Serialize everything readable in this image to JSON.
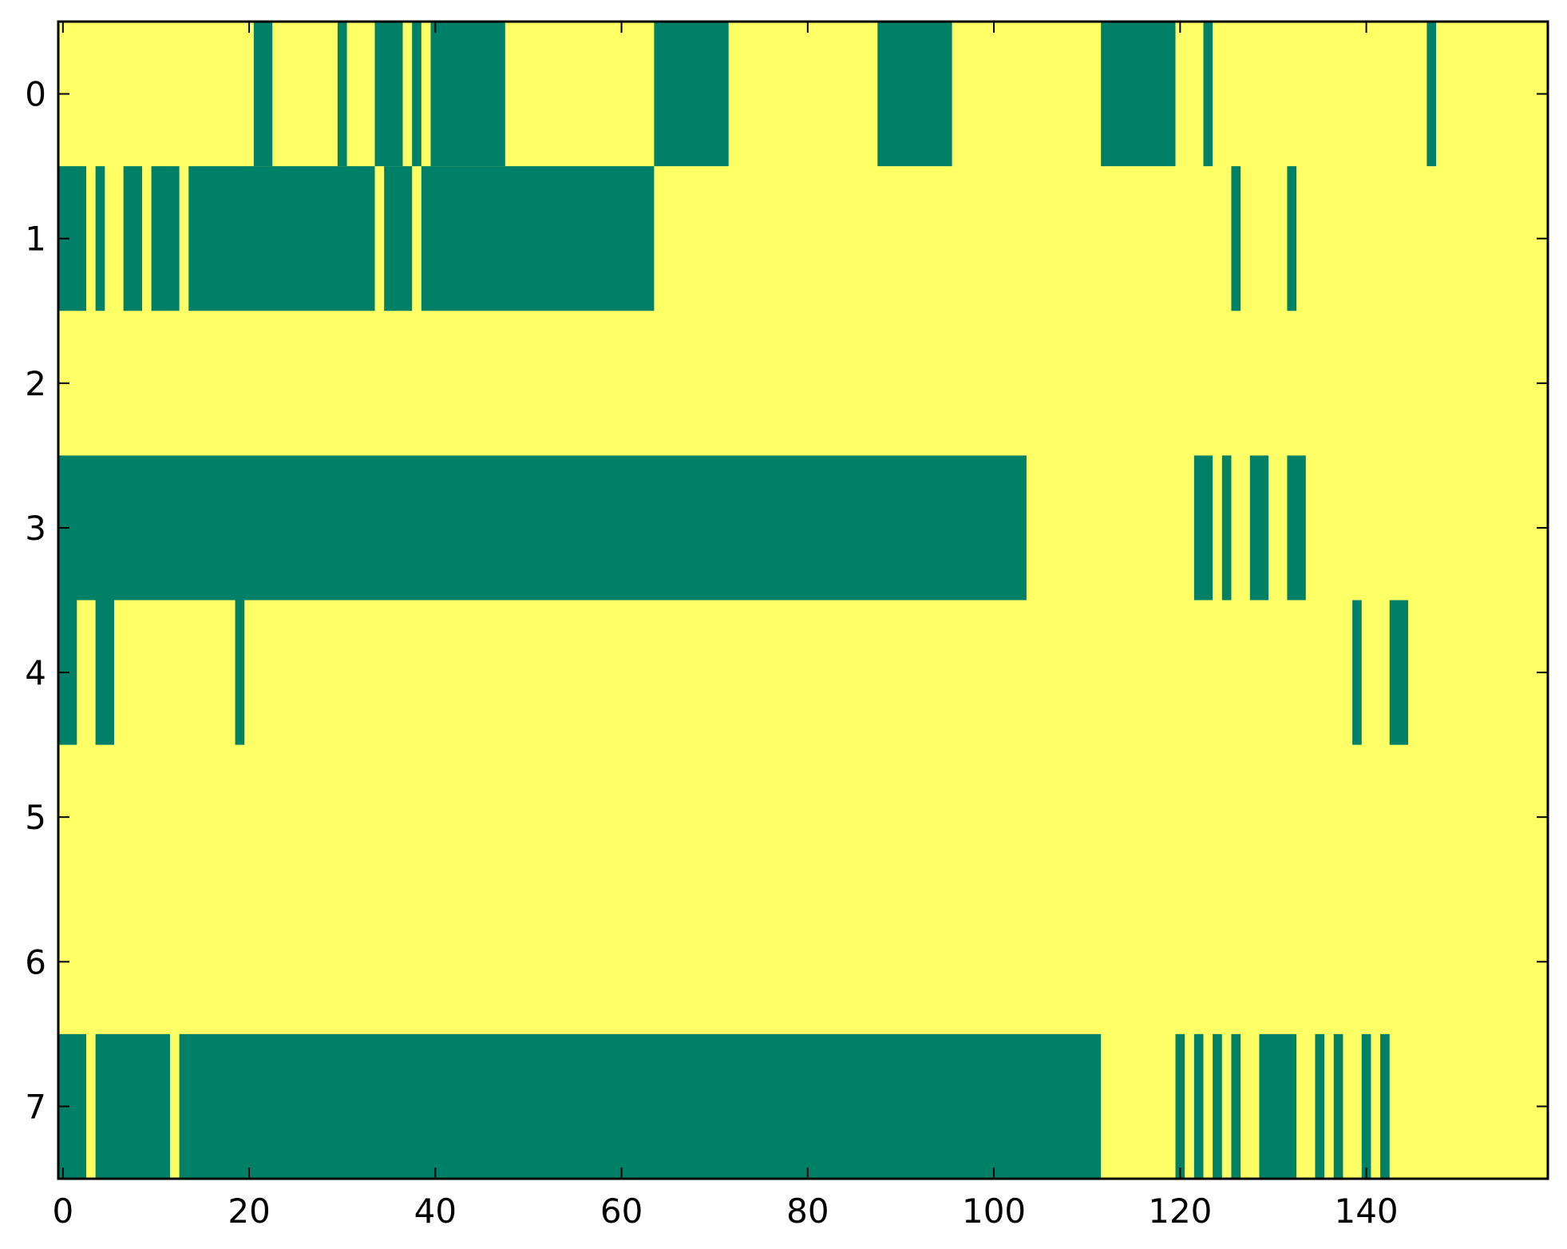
{
  "chart_data": {
    "type": "heatmap",
    "title": "",
    "xlabel": "",
    "ylabel": "",
    "xlim": [
      -0.5,
      159.5
    ],
    "ylim": [
      7.5,
      -0.5
    ],
    "x_ticks": [
      0,
      20,
      40,
      60,
      80,
      100,
      120,
      140
    ],
    "x_tick_labels": [
      "0",
      "20",
      "40",
      "60",
      "80",
      "100",
      "120",
      "140"
    ],
    "y_ticks": [
      0,
      1,
      2,
      3,
      4,
      5,
      6,
      7
    ],
    "y_tick_labels": [
      "0",
      "1",
      "2",
      "3",
      "4",
      "5",
      "6",
      "7"
    ],
    "grid": false,
    "colors": {
      "low": "#ffff66",
      "high": "#008066"
    },
    "value_legend": {
      "low": 0,
      "high": 1
    },
    "rows": [
      {
        "row": 0,
        "high_runs": [
          [
            21,
            22
          ],
          [
            30,
            30
          ],
          [
            34,
            36
          ],
          [
            38,
            38
          ],
          [
            40,
            47
          ],
          [
            64,
            71
          ],
          [
            88,
            95
          ],
          [
            112,
            119
          ],
          [
            123,
            123
          ],
          [
            147,
            147
          ]
        ]
      },
      {
        "row": 1,
        "high_runs": [
          [
            0,
            2
          ],
          [
            4,
            4
          ],
          [
            7,
            8
          ],
          [
            10,
            12
          ],
          [
            14,
            33
          ],
          [
            35,
            37
          ],
          [
            39,
            63
          ],
          [
            126,
            126
          ],
          [
            132,
            132
          ]
        ]
      },
      {
        "row": 2,
        "high_runs": []
      },
      {
        "row": 3,
        "high_runs": [
          [
            0,
            103
          ],
          [
            122,
            123
          ],
          [
            125,
            125
          ],
          [
            128,
            129
          ],
          [
            132,
            133
          ]
        ]
      },
      {
        "row": 4,
        "high_runs": [
          [
            0,
            1
          ],
          [
            4,
            5
          ],
          [
            19,
            19
          ],
          [
            139,
            139
          ],
          [
            143,
            144
          ]
        ]
      },
      {
        "row": 5,
        "high_runs": []
      },
      {
        "row": 6,
        "high_runs": []
      },
      {
        "row": 7,
        "high_runs": [
          [
            0,
            2
          ],
          [
            4,
            11
          ],
          [
            13,
            111
          ],
          [
            120,
            120
          ],
          [
            122,
            122
          ],
          [
            124,
            124
          ],
          [
            126,
            126
          ],
          [
            129,
            132
          ],
          [
            135,
            135
          ],
          [
            137,
            137
          ],
          [
            140,
            140
          ],
          [
            142,
            142
          ]
        ]
      }
    ]
  }
}
